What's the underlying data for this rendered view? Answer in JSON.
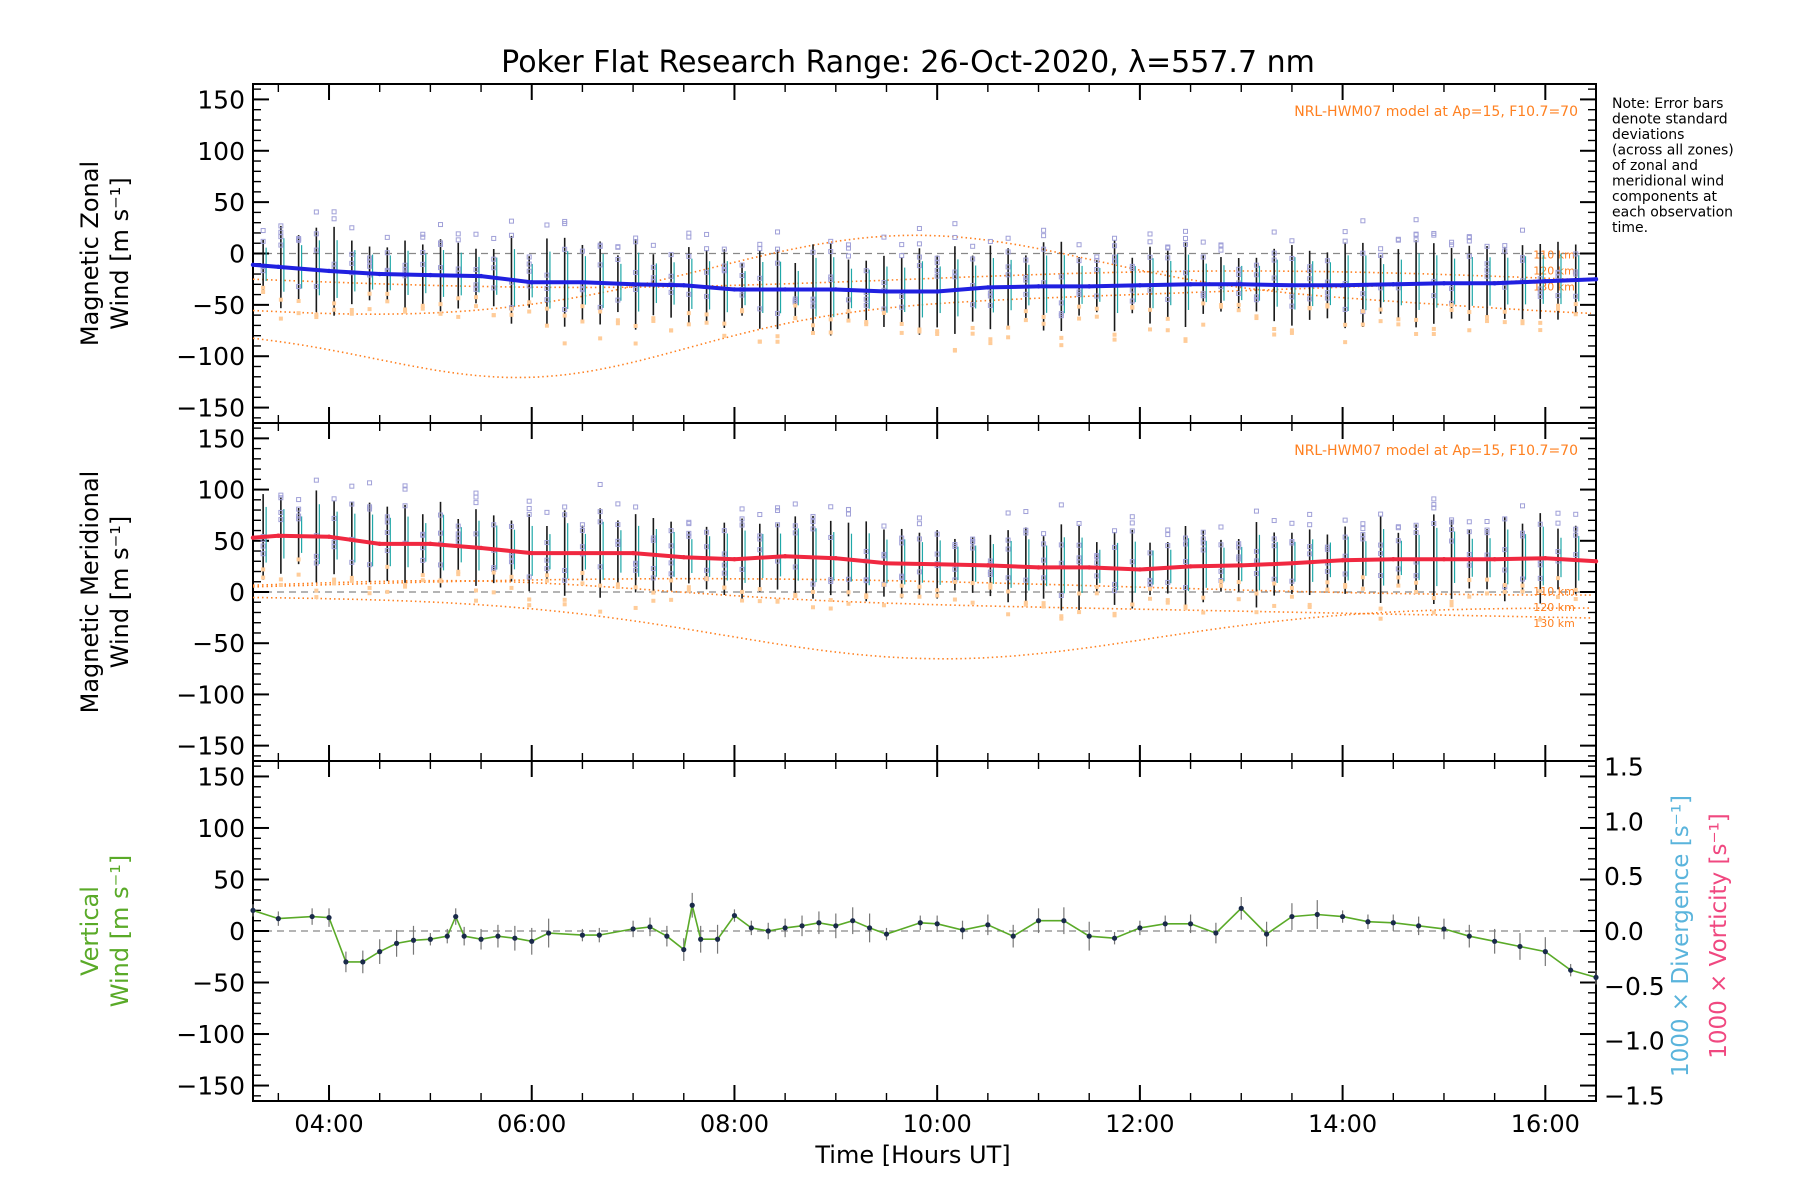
{
  "title": "Poker Flat Research Range: 26-Oct-2020, λ=557.7 nm",
  "note_lines": [
    "Note: Error bars",
    "denote standard",
    "deviations",
    "(across all zones)",
    "of zonal and",
    "meridional wind",
    "components at",
    "each observation",
    "time."
  ],
  "xlabel": "Time [Hours UT]",
  "x_ticks": [
    "04:00",
    "06:00",
    "08:00",
    "10:00",
    "12:00",
    "14:00",
    "16:00"
  ],
  "colors": {
    "zonal_mean": "#2020e0",
    "meridional_mean": "#f02840",
    "vertical": "#5aaa28",
    "model": "#ff8020",
    "zone_points": "#a0a0d8",
    "divergence": "#5ab4dc",
    "vorticity": "#f04880"
  },
  "chart_data": [
    {
      "type": "line",
      "panel": "zonal",
      "ylabel_lines": [
        "Magnetic Zonal",
        "Wind [m s⁻¹]"
      ],
      "ylim": [
        -165,
        165
      ],
      "y_ticks": [
        "150",
        "100",
        "50",
        "0",
        "−50",
        "−100",
        "−150"
      ],
      "xlim_hours": [
        3.25,
        16.5
      ],
      "model_label": "NRL-HWM07 model at Ap=15, F10.7=70",
      "model_altitudes": [
        "110 km",
        "120 km",
        "130 km"
      ],
      "series": [
        {
          "x": [
            "03:15",
            "03:30",
            "04:00",
            "04:30",
            "05:00",
            "05:30",
            "06:00",
            "06:30",
            "07:00",
            "07:30",
            "08:00",
            "08:30",
            "09:00",
            "09:30",
            "10:00",
            "10:30",
            "11:00",
            "11:30",
            "12:00",
            "12:30",
            "13:00",
            "13:30",
            "14:00",
            "14:30",
            "15:00",
            "15:30",
            "16:00",
            "16:30"
          ],
          "y": [
            -11,
            -13,
            -17,
            -20,
            -21,
            -22,
            -28,
            -28,
            -30,
            -31,
            -35,
            -35,
            -35,
            -37,
            -37,
            -33,
            -32,
            -32,
            -31,
            -30,
            -30,
            -31,
            -31,
            -30,
            -29,
            -29,
            -27,
            -25
          ]
        }
      ]
    },
    {
      "type": "line",
      "panel": "meridional",
      "ylabel_lines": [
        "Magnetic Meridional",
        "Wind [m s⁻¹]"
      ],
      "ylim": [
        -165,
        165
      ],
      "y_ticks": [
        "150",
        "100",
        "50",
        "0",
        "−50",
        "−100",
        "−150"
      ],
      "xlim_hours": [
        3.25,
        16.5
      ],
      "model_label": "NRL-HWM07 model at Ap=15, F10.7=70",
      "model_altitudes": [
        "110 km",
        "120 km",
        "130 km"
      ],
      "series": [
        {
          "x": [
            "03:15",
            "03:30",
            "04:00",
            "04:30",
            "05:00",
            "05:30",
            "06:00",
            "06:30",
            "07:00",
            "07:30",
            "08:00",
            "08:30",
            "09:00",
            "09:30",
            "10:00",
            "10:30",
            "11:00",
            "11:30",
            "12:00",
            "12:30",
            "13:00",
            "13:30",
            "14:00",
            "14:30",
            "15:00",
            "15:30",
            "16:00",
            "16:30"
          ],
          "y": [
            53,
            55,
            54,
            47,
            47,
            43,
            38,
            38,
            38,
            34,
            32,
            35,
            33,
            28,
            27,
            26,
            24,
            24,
            22,
            25,
            26,
            28,
            31,
            32,
            32,
            32,
            33,
            30
          ]
        }
      ]
    },
    {
      "type": "line",
      "panel": "vertical",
      "ylabel_lines": [
        "Vertical",
        "Wind [m s⁻¹]"
      ],
      "ylim": [
        -165,
        165
      ],
      "y_ticks": [
        "150",
        "100",
        "50",
        "0",
        "−50",
        "−100",
        "−150"
      ],
      "right_axis": {
        "label_divergence": "1000 × Divergence [s⁻¹]",
        "label_vorticity": "1000 × Vorticity [s⁻¹]",
        "ylim": [
          -1.55,
          1.55
        ],
        "ticks": [
          "1.5",
          "1.0",
          "0.5",
          "0.0",
          "−0.5",
          "−1.0",
          "−1.5"
        ]
      },
      "xlim_hours": [
        3.25,
        16.5
      ],
      "series": [
        {
          "x": [
            "03:15",
            "03:30",
            "03:50",
            "04:00",
            "04:10",
            "04:20",
            "04:30",
            "04:40",
            "04:50",
            "05:00",
            "05:10",
            "05:15",
            "05:20",
            "05:30",
            "05:40",
            "05:50",
            "06:00",
            "06:10",
            "06:30",
            "06:40",
            "07:00",
            "07:10",
            "07:20",
            "07:30",
            "07:35",
            "07:40",
            "07:50",
            "08:00",
            "08:10",
            "08:20",
            "08:30",
            "08:40",
            "08:50",
            "09:00",
            "09:10",
            "09:20",
            "09:30",
            "09:50",
            "10:00",
            "10:15",
            "10:30",
            "10:45",
            "11:00",
            "11:15",
            "11:30",
            "11:45",
            "12:00",
            "12:15",
            "12:30",
            "12:45",
            "13:00",
            "13:15",
            "13:30",
            "13:45",
            "14:00",
            "14:15",
            "14:30",
            "14:45",
            "15:00",
            "15:15",
            "15:30",
            "15:45",
            "16:00",
            "16:15",
            "16:30"
          ],
          "y": [
            20,
            12,
            14,
            13,
            -30,
            -30,
            -20,
            -12,
            -9,
            -8,
            -5,
            14,
            -5,
            -8,
            -5,
            -7,
            -10,
            -2,
            -4,
            -4,
            2,
            4,
            -5,
            -18,
            25,
            -8,
            -8,
            15,
            3,
            0,
            3,
            5,
            8,
            5,
            10,
            3,
            -3,
            8,
            7,
            1,
            6,
            -5,
            10,
            10,
            -5,
            -7,
            3,
            7,
            7,
            -2,
            22,
            -3,
            14,
            16,
            14,
            9,
            8,
            5,
            2,
            -5,
            -10,
            -15,
            -20,
            -38,
            -45
          ]
        }
      ]
    }
  ]
}
